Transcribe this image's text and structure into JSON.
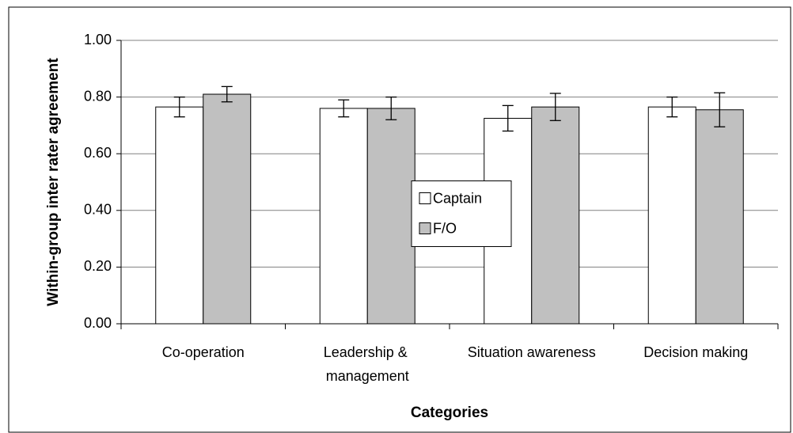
{
  "chart_data": {
    "type": "bar",
    "x_label": "Categories",
    "y_label": "Within-group inter rater agreement",
    "categories": [
      "Co-operation",
      "Leadership & management",
      "Situation awareness",
      "Decision making"
    ],
    "series": [
      {
        "name": "Captain",
        "color": "#ffffff",
        "values": [
          0.765,
          0.76,
          0.725,
          0.765
        ],
        "errors": [
          0.035,
          0.03,
          0.045,
          0.035
        ]
      },
      {
        "name": "F/O",
        "color": "#c0c0c0",
        "values": [
          0.81,
          0.76,
          0.765,
          0.755
        ],
        "errors": [
          0.027,
          0.04,
          0.048,
          0.06
        ]
      }
    ],
    "ylim": [
      0,
      1
    ],
    "yticks": [
      {
        "value": 0,
        "label": "0.00"
      },
      {
        "value": 0.2,
        "label": "0.20"
      },
      {
        "value": 0.4,
        "label": "0.40"
      },
      {
        "value": 0.6,
        "label": "0.60"
      },
      {
        "value": 0.8,
        "label": "0.80"
      },
      {
        "value": 1,
        "label": "1.00"
      }
    ],
    "grid": true,
    "legend": "center"
  }
}
